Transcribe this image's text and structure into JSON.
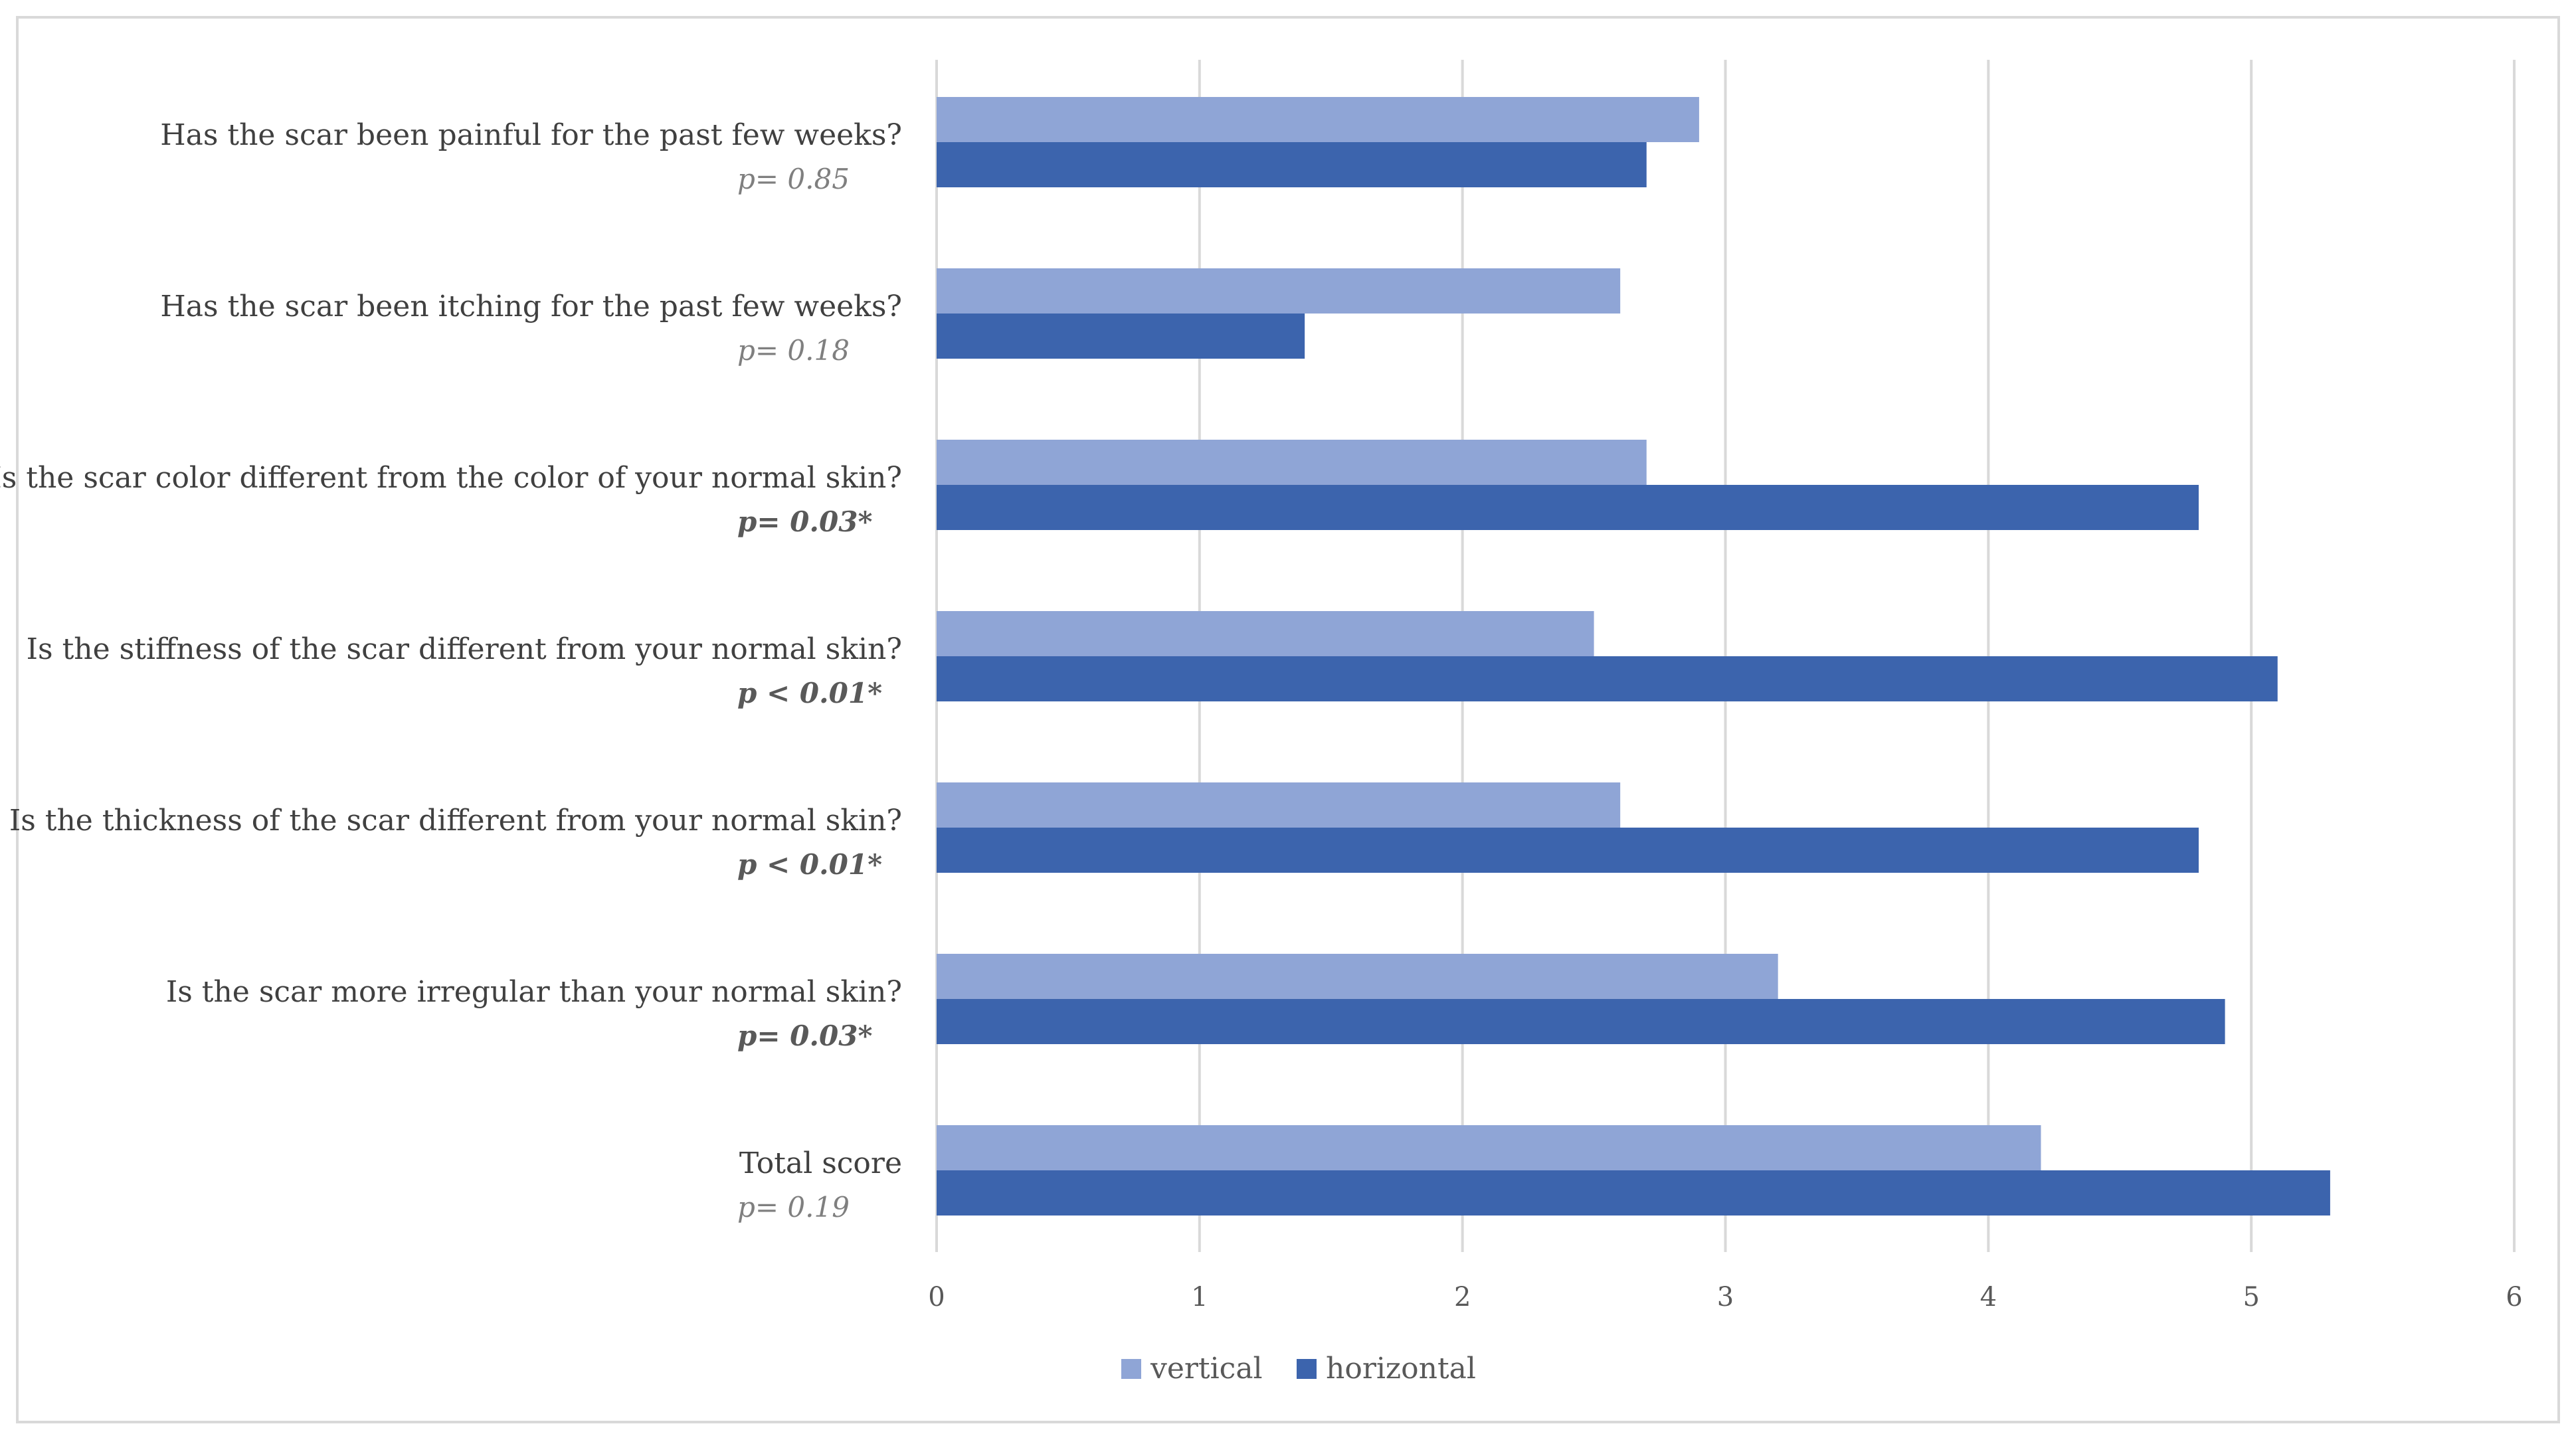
{
  "chart_data": {
    "type": "bar",
    "orientation": "horizontal",
    "title": "",
    "xlabel": "",
    "ylabel": "",
    "xlim": [
      0,
      6
    ],
    "ticks": [
      "0",
      "1",
      "2",
      "3",
      "4",
      "5",
      "6"
    ],
    "grid": true,
    "legend_position": "bottom",
    "categories": [
      "Has the scar been painful for the past few weeks?",
      "Has the scar been itching for the past few weeks?",
      "Is the scar color different from the color of your normal skin?",
      "Is the stiffness of the scar different from your normal skin?",
      "Is the thickness of the scar different from your normal skin?",
      "Is the scar more irregular than your normal skin?",
      "Total score"
    ],
    "p_values": [
      {
        "text": "p= 0.85",
        "significant": false
      },
      {
        "text": "p= 0.18",
        "significant": false
      },
      {
        "text": "p= 0.03*",
        "significant": true
      },
      {
        "text": "p < 0.01*",
        "significant": true
      },
      {
        "text": "p < 0.01*",
        "significant": true
      },
      {
        "text": "p= 0.03*",
        "significant": true
      },
      {
        "text": "p= 0.19",
        "significant": false
      }
    ],
    "series": [
      {
        "name": "vertical",
        "color": "#8fa5d6",
        "values": [
          2.9,
          2.6,
          2.7,
          2.5,
          2.6,
          3.2,
          4.2
        ]
      },
      {
        "name": "horizontal",
        "color": "#3c64ad",
        "values": [
          2.7,
          1.4,
          4.8,
          5.1,
          4.8,
          4.9,
          5.3
        ]
      }
    ]
  }
}
